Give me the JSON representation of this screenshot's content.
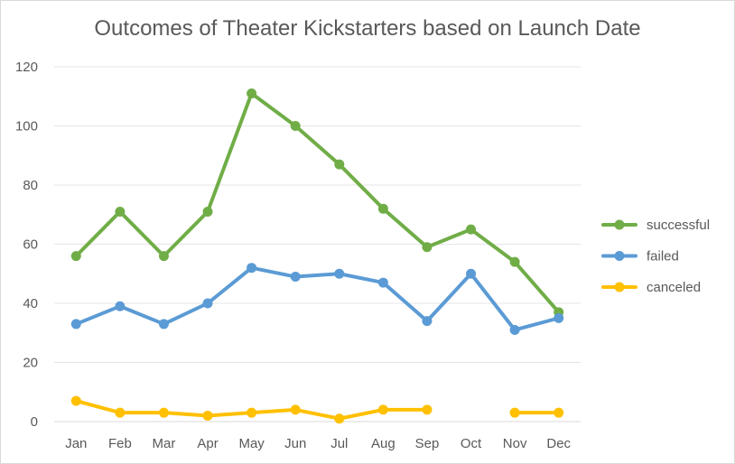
{
  "chart_data": {
    "type": "line",
    "title": "Outcomes of Theater Kickstarters based on Launch Date",
    "xlabel": "",
    "ylabel": "",
    "categories": [
      "Jan",
      "Feb",
      "Mar",
      "Apr",
      "May",
      "Jun",
      "Jul",
      "Aug",
      "Sep",
      "Oct",
      "Nov",
      "Dec"
    ],
    "ylim": [
      0,
      120
    ],
    "yticks": [
      "0",
      "20",
      "40",
      "60",
      "80",
      "100",
      "120"
    ],
    "grid": true,
    "legend_position": "right",
    "series": [
      {
        "name": "successful",
        "color": "#70ad47",
        "values": [
          56,
          71,
          56,
          71,
          111,
          100,
          87,
          72,
          59,
          65,
          54,
          37
        ]
      },
      {
        "name": "failed",
        "color": "#5b9bd5",
        "values": [
          33,
          39,
          33,
          40,
          52,
          49,
          50,
          47,
          34,
          50,
          31,
          35
        ]
      },
      {
        "name": "canceled",
        "color": "#ffc000",
        "values": [
          7,
          3,
          3,
          2,
          3,
          4,
          1,
          4,
          4,
          null,
          3,
          3
        ]
      }
    ]
  }
}
